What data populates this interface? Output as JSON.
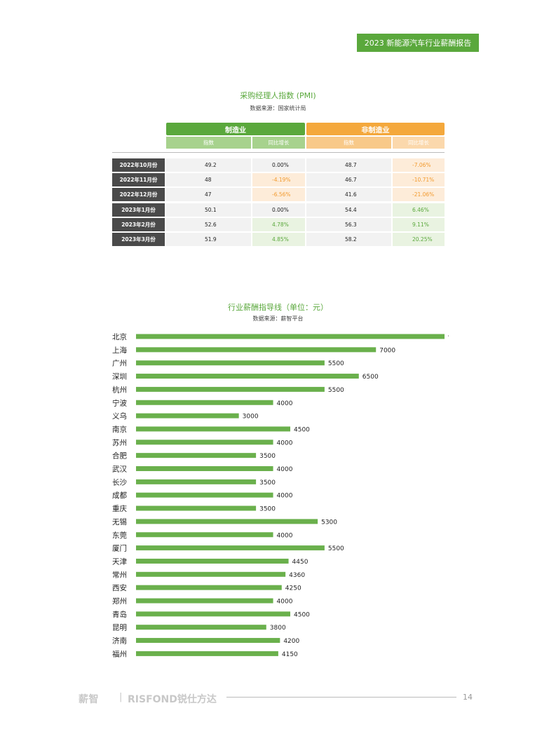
{
  "header": {
    "title": "2023 新能源汽车行业薪酬报告"
  },
  "pmi": {
    "title": "采购经理人指数 (PMI)",
    "source": "数据来源：国家统计局",
    "manufacturing_label": "制造业",
    "non_manufacturing_label": "非制造业",
    "index_label": "指数",
    "yoy_label": "同比增长",
    "rows": [
      {
        "month": "2022年10月份",
        "m_index": "49.2",
        "m_yoy": "0.00%",
        "n_index": "48.7",
        "n_yoy": "-7.06%"
      },
      {
        "month": "2022年11月份",
        "m_index": "48",
        "m_yoy": "-4.19%",
        "n_index": "46.7",
        "n_yoy": "-10.71%"
      },
      {
        "month": "2022年12月份",
        "m_index": "47",
        "m_yoy": "-6.56%",
        "n_index": "41.6",
        "n_yoy": "-21.06%"
      },
      {
        "month": "2023年1月份",
        "m_index": "50.1",
        "m_yoy": "0.00%",
        "n_index": "54.4",
        "n_yoy": "6.46%"
      },
      {
        "month": "2023年2月份",
        "m_index": "52.6",
        "m_yoy": "4.78%",
        "n_index": "56.3",
        "n_yoy": "9.11%"
      },
      {
        "month": "2023年3月份",
        "m_index": "51.9",
        "m_yoy": "4.85%",
        "n_index": "58.2",
        "n_yoy": "20.25%"
      }
    ]
  },
  "salary": {
    "title": "行业薪酬指导线（单位：元）",
    "source": "数据来源：薪智平台"
  },
  "chart_data": {
    "type": "bar",
    "orientation": "horizontal",
    "title": "行业薪酬指导线（单位：元）",
    "categories": [
      "北京",
      "上海",
      "广州",
      "深圳",
      "杭州",
      "宁波",
      "义乌",
      "南京",
      "苏州",
      "合肥",
      "武汉",
      "长沙",
      "成都",
      "重庆",
      "无锡",
      "东莞",
      "厦门",
      "天津",
      "常州",
      "西安",
      "郑州",
      "青岛",
      "昆明",
      "济南",
      "福州"
    ],
    "values": [
      9000,
      7000,
      5500,
      6500,
      5500,
      4000,
      3000,
      4500,
      4000,
      3500,
      4000,
      3500,
      4000,
      3500,
      5300,
      4000,
      5500,
      4450,
      4360,
      4250,
      4000,
      4500,
      3800,
      4200,
      4150
    ],
    "xlim": [
      0,
      9000
    ],
    "bar_color": "#6ab04c",
    "grid": false
  },
  "colors": {
    "green": "#5aa83c",
    "light_green": "#a7d28d",
    "orange": "#f4a83c",
    "light_orange": "#f8c989",
    "dark_gray": "#4a4a4a"
  },
  "footer": {
    "brand": "薪智",
    "separator": "|",
    "brand2": "RISFOND锐仕方达",
    "page": "14"
  }
}
